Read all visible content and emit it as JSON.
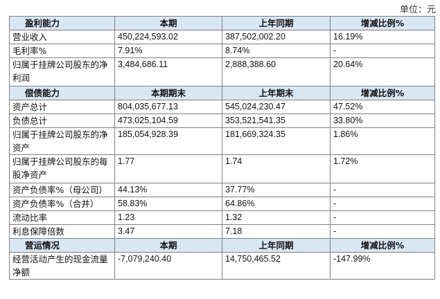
{
  "unit_label": "单位：元",
  "sections": [
    {
      "headers": [
        "盈利能力",
        "本期",
        "上年同期",
        "增减比例%"
      ],
      "rows": [
        [
          "营业收入",
          "450,224,593.02",
          "387,502,002.20",
          "16.19%"
        ],
        [
          "毛利率%",
          "7.91%",
          "8.74%",
          "-"
        ],
        [
          "归属于挂牌公司股东的净利润",
          "3,484,686.11",
          "2,888,388.60",
          "20.64%"
        ]
      ]
    },
    {
      "headers": [
        "偿债能力",
        "本期期末",
        "上年期末",
        "增减比例%"
      ],
      "rows": [
        [
          "资产总计",
          "804,035,677.13",
          "545,024,230.47",
          "47.52%"
        ],
        [
          "负债总计",
          "473,025,104.59",
          "353,521,541.35",
          "33.80%"
        ],
        [
          "归属于挂牌公司股东的净资产",
          "185,054,928.39",
          "181,669,324.35",
          "1.86%"
        ],
        [
          "归属于挂牌公司股东的每股净资产",
          "1.77",
          "1.74",
          "1.72%"
        ],
        [
          "资产负债率%（母公司）",
          "44.13%",
          "37.77%",
          "-"
        ],
        [
          "资产负债率%（合并）",
          "58.83%",
          "64.86%",
          "-"
        ],
        [
          "流动比率",
          "1.23",
          "1.32",
          "-"
        ],
        [
          "利息保障倍数",
          "3.47",
          "7.18",
          "-"
        ]
      ]
    },
    {
      "headers": [
        "营运情况",
        "本期",
        "上年同期",
        "增减比例%"
      ],
      "rows": [
        [
          "经营活动产生的现金流量净额",
          "-7,079,240.40",
          "14,750,465.52",
          "-147.99%"
        ]
      ]
    }
  ]
}
